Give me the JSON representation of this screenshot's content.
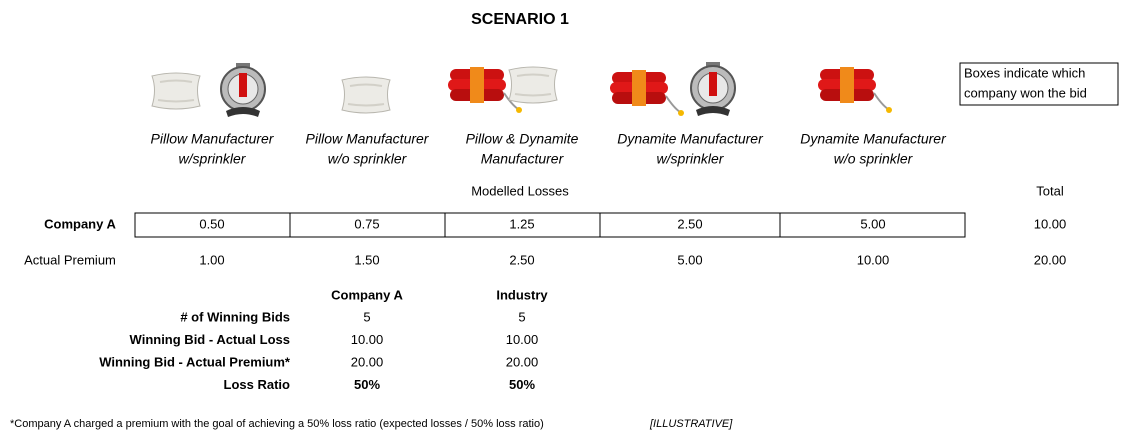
{
  "header": {
    "title": "SCENARIO 1"
  },
  "note": [
    "Boxes indicate which",
    "company won the bid"
  ],
  "columns": [
    [
      "Pillow Manufacturer",
      "w/sprinkler"
    ],
    [
      "Pillow Manufacturer",
      "w/o sprinkler"
    ],
    [
      "Pillow & Dynamite",
      "Manufacturer"
    ],
    [
      "Dynamite Manufacturer",
      "w/sprinkler"
    ],
    [
      "Dynamite Manufacturer",
      "w/o sprinkler"
    ]
  ],
  "section_label": "Modelled Losses",
  "total_label": "Total",
  "table": {
    "rows": [
      {
        "label": "Company A",
        "cells": [
          "0.50",
          "0.75",
          "1.25",
          "2.50",
          "5.00"
        ],
        "total": "10.00"
      },
      {
        "label": "Actual Premium",
        "cells": [
          "1.00",
          "1.50",
          "2.50",
          "5.00",
          "10.00"
        ],
        "total": "20.00"
      }
    ]
  },
  "summary": {
    "headers": [
      "Company A",
      "Industry"
    ],
    "rows": [
      {
        "label": "# of Winning Bids",
        "cells": [
          "5",
          "5"
        ]
      },
      {
        "label": "Winning Bid - Actual Loss",
        "cells": [
          "10.00",
          "10.00"
        ]
      },
      {
        "label": "Winning Bid - Actual Premium*",
        "cells": [
          "20.00",
          "20.00"
        ]
      },
      {
        "label": "Loss Ratio",
        "cells": [
          "50%",
          "50%"
        ]
      }
    ]
  },
  "footnote": {
    "text": "*Company A charged a premium with the goal of achieving a 50% loss ratio (expected losses / 50% loss ratio)",
    "tag": "[ILLUSTRATIVE]"
  }
}
